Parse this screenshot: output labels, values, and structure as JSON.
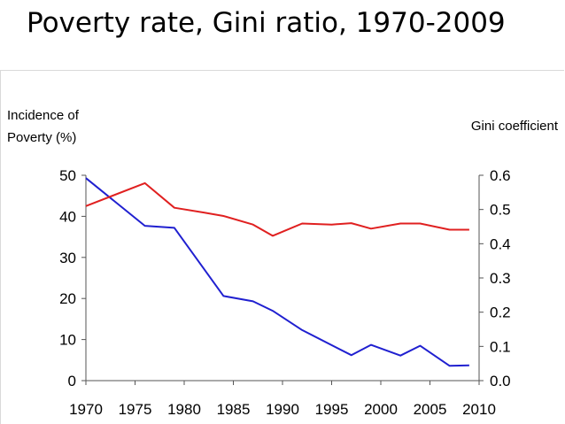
{
  "slide": {
    "title": "Poverty rate, Gini ratio, 1970-2009"
  },
  "chart_data": {
    "type": "line",
    "title": "",
    "y_left_label_lines": [
      "Incidence of",
      "Poverty (%)"
    ],
    "y_right_label": "Gini coefficient",
    "x_ticks": [
      "1970",
      "1975",
      "1980",
      "1985",
      "1990",
      "1995",
      "2000",
      "2005",
      "2010"
    ],
    "xlim": [
      1970,
      2010
    ],
    "y_left_ticks": [
      "0",
      "10",
      "20",
      "30",
      "40",
      "50"
    ],
    "y_left_lim": [
      0,
      50
    ],
    "y_right_ticks": [
      "0.0",
      "0.1",
      "0.2",
      "0.3",
      "0.4",
      "0.5",
      "0.6"
    ],
    "y_right_lim": [
      0,
      0.6
    ],
    "grid": false,
    "series": [
      {
        "axis": "left",
        "color": "#2020d0",
        "x": [
          1970,
          1976,
          1979,
          1984,
          1987,
          1989,
          1992,
          1997,
          1999,
          2002,
          2004,
          2007,
          2009
        ],
        "values": [
          49.3,
          37.7,
          37.2,
          20.6,
          19.3,
          17.0,
          12.3,
          6.2,
          8.7,
          6.1,
          8.5,
          3.6,
          3.7
        ]
      },
      {
        "axis": "right",
        "color": "#e02020",
        "x": [
          1970,
          1976,
          1979,
          1982,
          1984,
          1987,
          1989,
          1992,
          1995,
          1997,
          1999,
          2002,
          2004,
          2007,
          2009
        ],
        "values": [
          0.51,
          0.577,
          0.505,
          0.491,
          0.481,
          0.456,
          0.423,
          0.459,
          0.456,
          0.46,
          0.444,
          0.459,
          0.459,
          0.441,
          0.441
        ]
      }
    ]
  }
}
